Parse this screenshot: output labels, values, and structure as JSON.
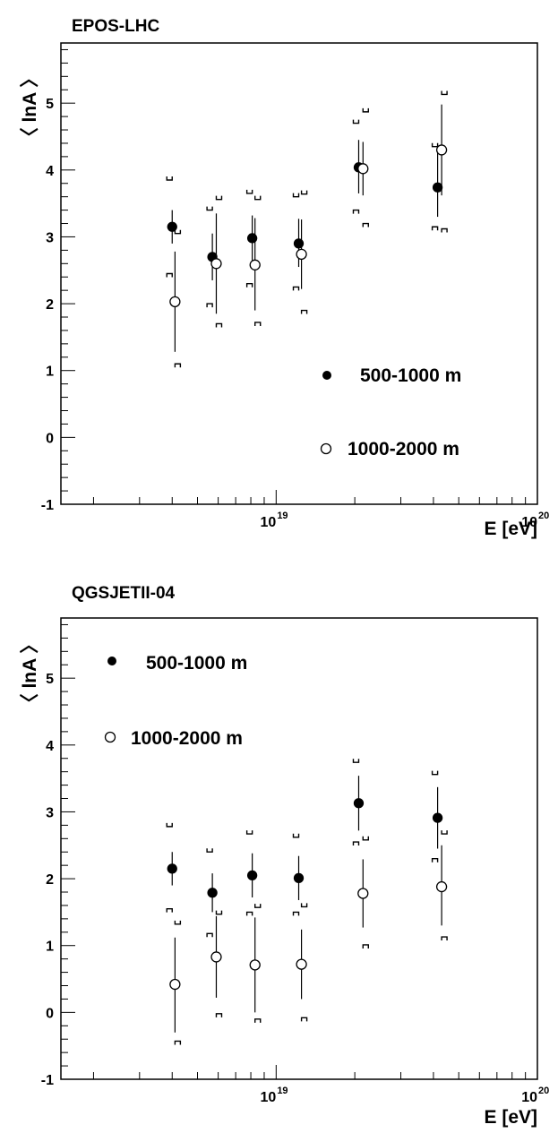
{
  "chart_data": [
    {
      "type": "scatter",
      "title": "EPOS-LHC",
      "xlabel": "E [eV]",
      "ylabel": "〈 lnA 〉",
      "x_scale": "log",
      "xlim": [
        1.5e+18,
        1e+20
      ],
      "ylim": [
        -1,
        5.9
      ],
      "y_ticks": [
        -1,
        0,
        1,
        2,
        3,
        4,
        5
      ],
      "y_tick_labels": [
        "-1",
        "0",
        "1",
        "2",
        "3",
        "4",
        "5"
      ],
      "x_tick_labels": [
        {
          "base": "10",
          "exp": "19",
          "value": 1e+19
        },
        {
          "base": "10",
          "exp": "20",
          "value": 1e+20
        }
      ],
      "legend_position": "bottom-right",
      "series": [
        {
          "name": "500-1000 m",
          "marker": "filled-circle",
          "x": [
            4e+18,
            5.7e+18,
            8.1e+18,
            1.22e+19,
            2.07e+19,
            4.15e+19
          ],
          "y": [
            3.15,
            2.7,
            2.98,
            2.9,
            4.04,
            3.74
          ],
          "stat_lo": [
            2.9,
            2.35,
            2.65,
            2.55,
            3.65,
            3.3
          ],
          "stat_hi": [
            3.4,
            3.05,
            3.32,
            3.27,
            4.45,
            4.35
          ],
          "sys_lo": [
            2.45,
            2.0,
            2.3,
            2.25,
            3.4,
            3.15
          ],
          "sys_hi": [
            3.85,
            3.4,
            3.65,
            3.6,
            4.7,
            4.35
          ]
        },
        {
          "name": "1000-2000 m",
          "marker": "open-circle",
          "x": [
            4.1e+18,
            5.9e+18,
            8.3e+18,
            1.25e+19,
            2.15e+19,
            4.3e+19
          ],
          "y": [
            2.03,
            2.6,
            2.58,
            2.74,
            4.02,
            4.3
          ],
          "stat_lo": [
            1.28,
            1.85,
            1.9,
            2.22,
            3.62,
            3.62
          ],
          "stat_hi": [
            2.78,
            3.35,
            3.28,
            3.26,
            4.42,
            4.98
          ],
          "sys_lo": [
            1.1,
            1.7,
            1.72,
            1.9,
            3.2,
            3.12
          ],
          "sys_hi": [
            3.05,
            3.56,
            3.56,
            3.64,
            4.87,
            5.13
          ]
        }
      ]
    },
    {
      "type": "scatter",
      "title": "QGSJETII-04",
      "xlabel": "E [eV]",
      "ylabel": "〈 lnA 〉",
      "x_scale": "log",
      "xlim": [
        1.5e+18,
        1e+20
      ],
      "ylim": [
        -1,
        5.9
      ],
      "y_ticks": [
        -1,
        0,
        1,
        2,
        3,
        4,
        5
      ],
      "y_tick_labels": [
        "-1",
        "0",
        "1",
        "2",
        "3",
        "4",
        "5"
      ],
      "x_tick_labels": [
        {
          "base": "10",
          "exp": "19",
          "value": 1e+19
        },
        {
          "base": "10",
          "exp": "20",
          "value": 1e+20
        }
      ],
      "legend_position": "top-left",
      "series": [
        {
          "name": "500-1000 m",
          "marker": "filled-circle",
          "x": [
            4e+18,
            5.7e+18,
            8.1e+18,
            1.22e+19,
            2.07e+19,
            4.15e+19
          ],
          "y": [
            2.15,
            1.79,
            2.05,
            2.01,
            3.13,
            2.91
          ],
          "stat_lo": [
            1.9,
            1.5,
            1.72,
            1.68,
            2.72,
            2.45
          ],
          "stat_hi": [
            2.4,
            2.08,
            2.38,
            2.34,
            3.54,
            3.37
          ],
          "sys_lo": [
            1.55,
            1.18,
            1.5,
            1.5,
            2.55,
            2.3
          ],
          "sys_hi": [
            2.78,
            2.4,
            2.67,
            2.62,
            3.74,
            3.56
          ]
        },
        {
          "name": "1000-2000 m",
          "marker": "open-circle",
          "x": [
            4.1e+18,
            5.9e+18,
            8.3e+18,
            1.25e+19,
            2.15e+19,
            4.3e+19
          ],
          "y": [
            0.42,
            0.83,
            0.71,
            0.72,
            1.78,
            1.88
          ],
          "stat_lo": [
            -0.3,
            0.22,
            0.0,
            0.2,
            1.27,
            1.3
          ],
          "stat_hi": [
            1.12,
            1.44,
            1.42,
            1.24,
            2.29,
            2.5
          ],
          "sys_lo": [
            -0.43,
            -0.02,
            -0.1,
            -0.08,
            1.01,
            1.13
          ],
          "sys_hi": [
            1.32,
            1.47,
            1.57,
            1.58,
            2.58,
            2.67
          ]
        }
      ]
    }
  ]
}
